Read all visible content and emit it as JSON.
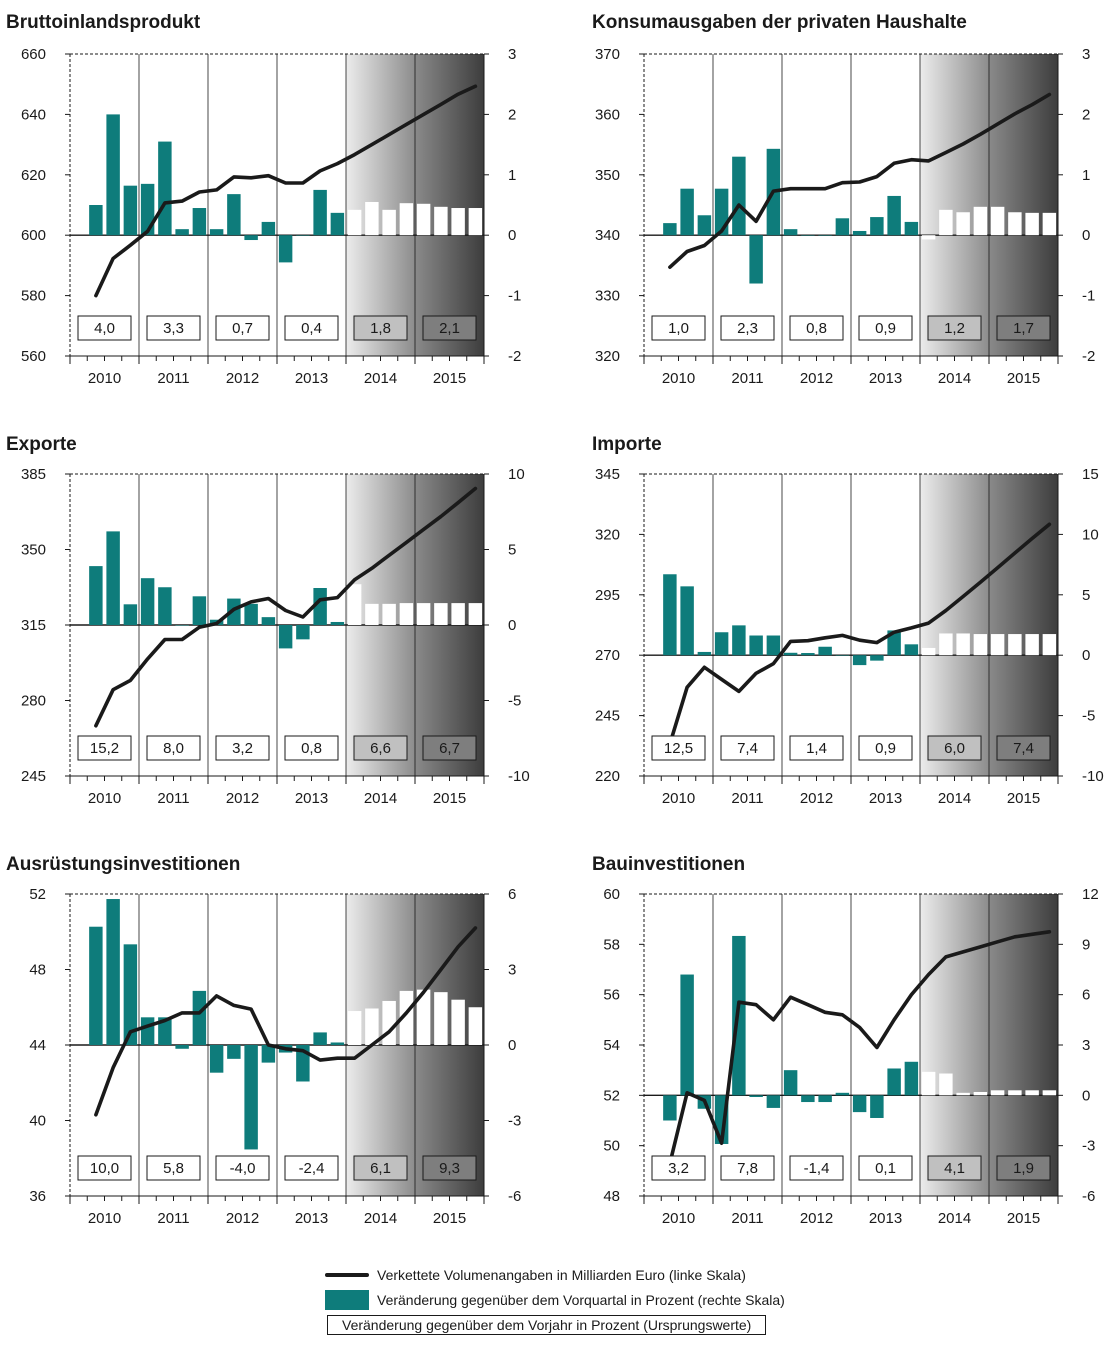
{
  "colors": {
    "bar": "#0e7c7b",
    "line": "#1a1a1a",
    "forecast_bar": "#ffffff"
  },
  "legend": {
    "line_label": "Verkettete Volumenangaben in Milliarden Euro (linke Skala)",
    "bar_label": "Veränderung gegenüber dem Vorquartal in Prozent (rechte Skala)",
    "box_label": "Veränderung gegenüber dem Vorjahr in Prozent (Ursprungswerte)"
  },
  "chart_data": [
    {
      "type": "bar+line",
      "title": "Bruttoinlandsprodukt",
      "years": [
        "2010",
        "2011",
        "2012",
        "2013",
        "2014",
        "2015"
      ],
      "left_ticks": [
        "660",
        "640",
        "620",
        "600",
        "580",
        "560"
      ],
      "right_ticks": [
        "3",
        "2",
        "1",
        "0",
        "-1",
        "-2"
      ],
      "left_range": [
        560,
        660
      ],
      "right_range": [
        -2,
        3
      ],
      "line_values": [
        580,
        592.3,
        596.7,
        601.3,
        610.7,
        611.3,
        614.3,
        615,
        619.3,
        619,
        619.7,
        617.3,
        617.3,
        621.3,
        623.7,
        626.7,
        630,
        633.3,
        636.7,
        640,
        643.3,
        646.7,
        649.3
      ],
      "bar_values": [
        0.5,
        2.0,
        0.82,
        0.85,
        1.55,
        0.1,
        0.45,
        0.1,
        0.68,
        -0.08,
        0.22,
        -0.45,
        0.0,
        0.75,
        0.37,
        0.42,
        0.55,
        0.42,
        0.53,
        0.52,
        0.47,
        0.45,
        0.45
      ],
      "annual_changes": [
        "4,0",
        "3,3",
        "0,7",
        "0,4",
        "1,8",
        "2,1"
      ]
    },
    {
      "type": "bar+line",
      "title": "Konsumausgaben der privaten Haushalte",
      "years": [
        "2010",
        "2011",
        "2012",
        "2013",
        "2014",
        "2015"
      ],
      "left_ticks": [
        "370",
        "360",
        "350",
        "340",
        "330",
        "320"
      ],
      "right_ticks": [
        "3",
        "2",
        "1",
        "0",
        "-1",
        "-2"
      ],
      "left_range": [
        320,
        370
      ],
      "right_range": [
        -2,
        3
      ],
      "line_values": [
        334.7,
        337.3,
        338.3,
        340.7,
        345,
        342.3,
        347.3,
        347.7,
        347.7,
        347.7,
        348.7,
        348.8,
        349.7,
        351.9,
        352.5,
        352.3,
        353.7,
        355.1,
        356.7,
        358.4,
        360.1,
        361.6,
        363.3
      ],
      "bar_values": [
        0.2,
        0.77,
        0.33,
        0.77,
        1.3,
        -0.8,
        1.43,
        0.1,
        0.0,
        0.0,
        0.28,
        0.07,
        0.3,
        0.65,
        0.22,
        -0.07,
        0.42,
        0.38,
        0.47,
        0.47,
        0.38,
        0.37,
        0.37
      ],
      "annual_changes": [
        "1,0",
        "2,3",
        "0,8",
        "0,9",
        "1,2",
        "1,7"
      ]
    },
    {
      "type": "bar+line",
      "title": "Exporte",
      "years": [
        "2010",
        "2011",
        "2012",
        "2013",
        "2014",
        "2015"
      ],
      "left_ticks": [
        "385",
        "350",
        "315",
        "280",
        "245"
      ],
      "right_ticks": [
        "10",
        "5",
        "0",
        "-5",
        "-10"
      ],
      "left_range": [
        245,
        385
      ],
      "right_range": [
        -10,
        10
      ],
      "line_values": [
        268.3,
        285,
        289.3,
        299.3,
        308.3,
        308.3,
        314,
        315.7,
        322.3,
        325.7,
        327.3,
        321.7,
        318.7,
        326.7,
        327.7,
        336,
        341.3,
        347.3,
        353.3,
        359.3,
        365.3,
        371.7,
        378.3
      ],
      "bar_values": [
        3.9,
        6.2,
        1.37,
        3.1,
        2.5,
        0.0,
        1.9,
        0.35,
        1.75,
        1.4,
        0.52,
        -1.55,
        -0.95,
        2.45,
        0.2,
        2.7,
        1.4,
        1.4,
        1.45,
        1.45,
        1.45,
        1.45,
        1.45
      ],
      "annual_changes": [
        "15,2",
        "8,0",
        "3,2",
        "0,8",
        "6,6",
        "6,7"
      ]
    },
    {
      "type": "bar+line",
      "title": "Importe",
      "years": [
        "2010",
        "2011",
        "2012",
        "2013",
        "2014",
        "2015"
      ],
      "left_ticks": [
        "345",
        "320",
        "295",
        "270",
        "245",
        "220"
      ],
      "right_ticks": [
        "15",
        "10",
        "5",
        "0",
        "-5",
        "-10"
      ],
      "left_range": [
        220,
        345
      ],
      "right_range": [
        -10,
        15
      ],
      "line_values": [
        233.3,
        256.7,
        265,
        260,
        255,
        262.5,
        266.5,
        275.7,
        276,
        277.2,
        278.2,
        276.2,
        275.2,
        279.5,
        281.3,
        283.3,
        288.5,
        294.3,
        300.2,
        306.2,
        312.3,
        318.3,
        324.2
      ],
      "bar_values": [
        6.7,
        5.7,
        0.27,
        1.9,
        2.47,
        1.63,
        1.63,
        0.2,
        0.18,
        0.7,
        0.0,
        -0.82,
        -0.45,
        2.05,
        0.9,
        0.6,
        1.8,
        1.8,
        1.75,
        1.75,
        1.75,
        1.75,
        1.75
      ],
      "annual_changes": [
        "12,5",
        "7,4",
        "1,4",
        "0,9",
        "6,0",
        "7,4"
      ]
    },
    {
      "type": "bar+line",
      "title": "Ausrüstungsinvestitionen",
      "years": [
        "2010",
        "2011",
        "2012",
        "2013",
        "2014",
        "2015"
      ],
      "left_ticks": [
        "52",
        "48",
        "44",
        "40",
        "36"
      ],
      "right_ticks": [
        "6",
        "3",
        "0",
        "-3",
        "-6"
      ],
      "left_range": [
        36,
        52
      ],
      "right_range": [
        -6,
        6
      ],
      "line_values": [
        40.3,
        42.8,
        44.7,
        45.0,
        45.3,
        45.7,
        45.7,
        46.6,
        46.1,
        45.9,
        44.0,
        43.8,
        43.7,
        43.2,
        43.3,
        43.3,
        44.0,
        44.7,
        45.7,
        46.8,
        48.0,
        49.2,
        50.2
      ],
      "bar_values": [
        4.7,
        5.8,
        4.0,
        1.1,
        1.1,
        -0.15,
        2.15,
        -1.1,
        -0.55,
        -4.15,
        -0.7,
        -0.3,
        -1.45,
        0.5,
        0.1,
        1.35,
        1.45,
        1.75,
        2.15,
        2.2,
        2.1,
        1.8,
        1.5
      ],
      "annual_changes": [
        "10,0",
        "5,8",
        "-4,0",
        "-2,4",
        "6,1",
        "9,3"
      ]
    },
    {
      "type": "bar+line",
      "title": "Bauinvestitionen",
      "years": [
        "2010",
        "2011",
        "2012",
        "2013",
        "2014",
        "2015"
      ],
      "left_ticks": [
        "60",
        "58",
        "56",
        "54",
        "52",
        "50",
        "48"
      ],
      "right_ticks": [
        "12",
        "9",
        "6",
        "3",
        "0",
        "-3",
        "-6"
      ],
      "left_range": [
        48,
        60
      ],
      "right_range": [
        -6,
        12
      ],
      "line_values": [
        49.3,
        52.1,
        51.8,
        50.1,
        55.7,
        55.6,
        55.0,
        55.9,
        55.6,
        55.3,
        55.2,
        54.7,
        53.9,
        55.0,
        56.0,
        56.8,
        57.5,
        57.7,
        57.9,
        58.1,
        58.3,
        58.4,
        58.5
      ],
      "bar_values": [
        -1.5,
        7.2,
        -0.8,
        -2.9,
        9.5,
        -0.1,
        -0.75,
        1.5,
        -0.4,
        -0.4,
        0.15,
        -1.0,
        -1.35,
        1.6,
        2.0,
        1.4,
        1.3,
        0.15,
        0.2,
        0.3,
        0.3,
        0.3,
        0.3
      ],
      "annual_changes": [
        "3,2",
        "7,8",
        "-1,4",
        "0,1",
        "4,1",
        "1,9"
      ]
    }
  ]
}
